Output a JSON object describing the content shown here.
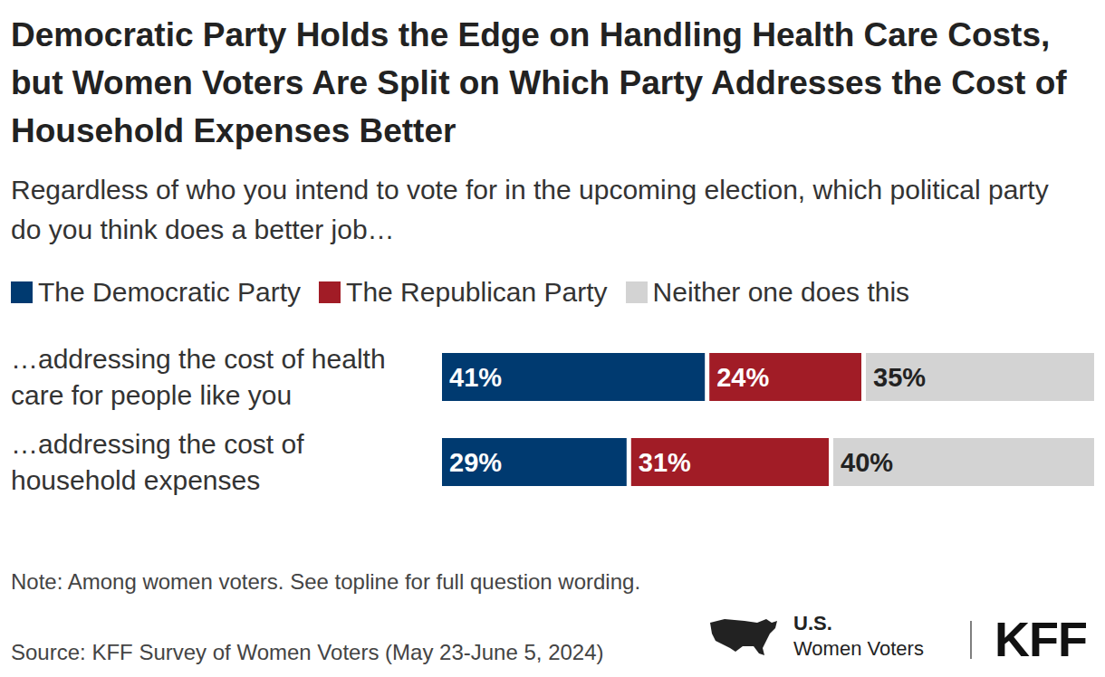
{
  "chart_data": {
    "type": "bar",
    "orientation": "horizontal",
    "stacked": true,
    "data_labels": true,
    "tick_labels": false,
    "title": "Democratic Party Holds the Edge on Handling Health Care Costs, but Women Voters Are Split on Which Party Addresses the Cost of Household Expenses Better",
    "subtitle": "Regardless of who you intend to vote for in the upcoming election, which political party do you think does a better job…",
    "categories": [
      "…addressing the cost of health care for people like you",
      "…addressing the cost of household expenses"
    ],
    "series": [
      {
        "name": "The Democratic Party",
        "color": "#003a70",
        "values": [
          41,
          29
        ],
        "value_labels": [
          "41%",
          "29%"
        ]
      },
      {
        "name": "The Republican Party",
        "color": "#a11c26",
        "values": [
          24,
          31
        ],
        "value_labels": [
          "24%",
          "31%"
        ]
      },
      {
        "name": "Neither one does this",
        "color": "#d3d3d3",
        "values": [
          35,
          40
        ],
        "value_labels": [
          "35%",
          "40%"
        ]
      }
    ],
    "xlim": [
      0,
      100
    ],
    "note": "Note: Among women voters. See topline for full question wording.",
    "source": "Source: KFF Survey of Women Voters (May 23-June 5, 2024)",
    "logo_title": "U.S.",
    "logo_subtitle": "Women Voters",
    "brand": "KFF"
  }
}
